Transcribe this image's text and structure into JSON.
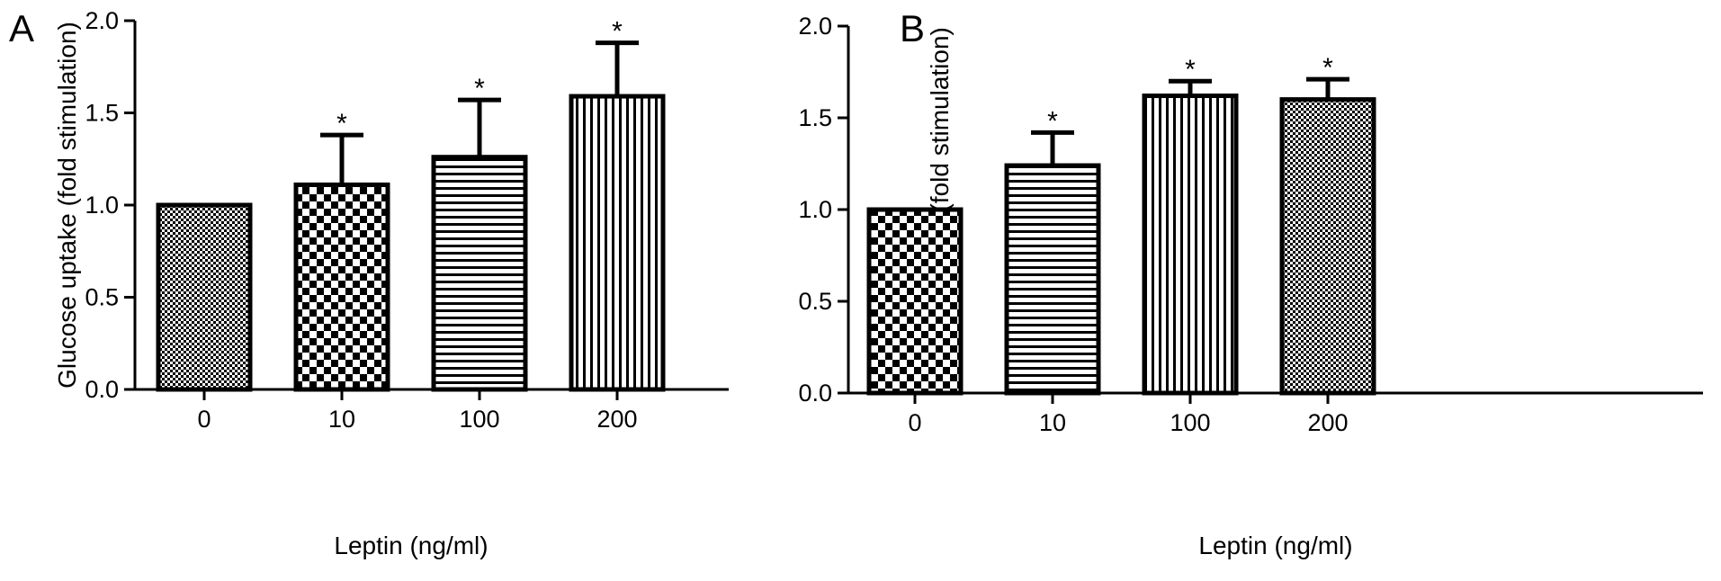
{
  "figure": {
    "panels": [
      "A",
      "B"
    ]
  },
  "chart_data": [
    {
      "panel": "A",
      "type": "bar",
      "xlabel": "Leptin (ng/ml)",
      "ylabel": "Glucose uptake (fold stimulation)",
      "ylim": [
        0,
        2.0
      ],
      "yticks": [
        "0.0",
        "0.5",
        "1.0",
        "1.5",
        "2.0"
      ],
      "categories": [
        "0",
        "10",
        "100",
        "200"
      ],
      "values": [
        1.0,
        1.11,
        1.26,
        1.59
      ],
      "error": [
        0,
        0.27,
        0.31,
        0.29
      ],
      "significance": [
        "",
        "*",
        "*",
        "*"
      ],
      "patterns": [
        "fine-crosshatch",
        "checker",
        "horizontal-lines",
        "vertical-lines"
      ],
      "grid": false,
      "legend": "none"
    },
    {
      "panel": "B",
      "type": "bar",
      "xlabel": "Leptin (ng/ml)",
      "ylabel": "Glucose uptake (fold stimulation)",
      "ylim": [
        0,
        2.0
      ],
      "yticks": [
        "0.0",
        "0.5",
        "1.0",
        "1.5",
        "2.0"
      ],
      "categories": [
        "0",
        "10",
        "100",
        "200"
      ],
      "values": [
        1.0,
        1.24,
        1.62,
        1.6
      ],
      "error": [
        0,
        0.18,
        0.08,
        0.11
      ],
      "significance": [
        "",
        "*",
        "*",
        "*"
      ],
      "patterns": [
        "checker",
        "horizontal-lines",
        "vertical-lines",
        "fine-crosshatch"
      ],
      "grid": false,
      "legend": "none"
    }
  ]
}
